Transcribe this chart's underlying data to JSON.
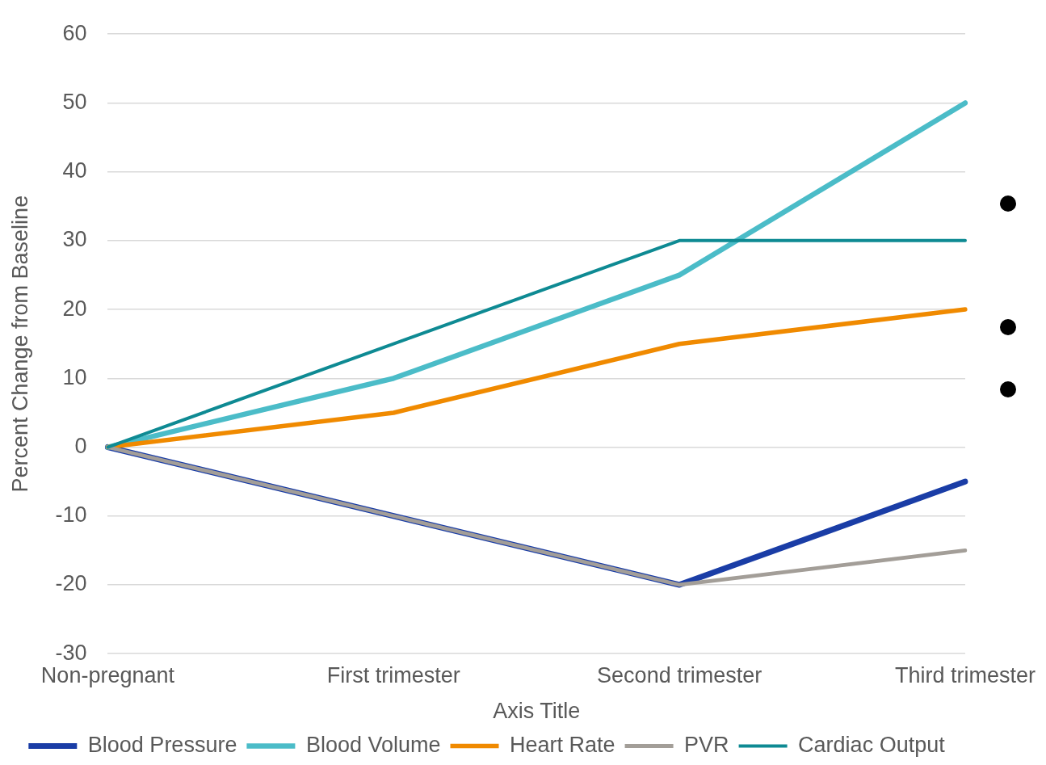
{
  "chart_data": {
    "type": "line",
    "xlabel": "Axis Title",
    "ylabel": "Percent Change from Baseline",
    "categories": [
      "Non-pregnant",
      "First trimester",
      "Second trimester",
      "Third trimester"
    ],
    "series": [
      {
        "name": "Blood Pressure",
        "color": "#1a3da6",
        "values": [
          0,
          -10,
          -20,
          -5
        ]
      },
      {
        "name": "Blood Volume",
        "color": "#4bbcc8",
        "values": [
          0,
          10,
          25,
          50
        ]
      },
      {
        "name": "Heart Rate",
        "color": "#f08a00",
        "values": [
          0,
          5,
          15,
          20
        ]
      },
      {
        "name": "PVR",
        "color": "#a39e98",
        "values": [
          0,
          -10,
          -20,
          -15
        ]
      },
      {
        "name": "Cardiac Output",
        "color": "#0e8a93",
        "values": [
          0,
          15,
          30,
          30
        ]
      }
    ],
    "ylim": [
      -30,
      60
    ],
    "yticks": [
      -30,
      -20,
      -10,
      0,
      10,
      20,
      30,
      40,
      50,
      60
    ],
    "grid": "y",
    "legend": "bottom",
    "marker": "none",
    "line_style": "solid"
  }
}
